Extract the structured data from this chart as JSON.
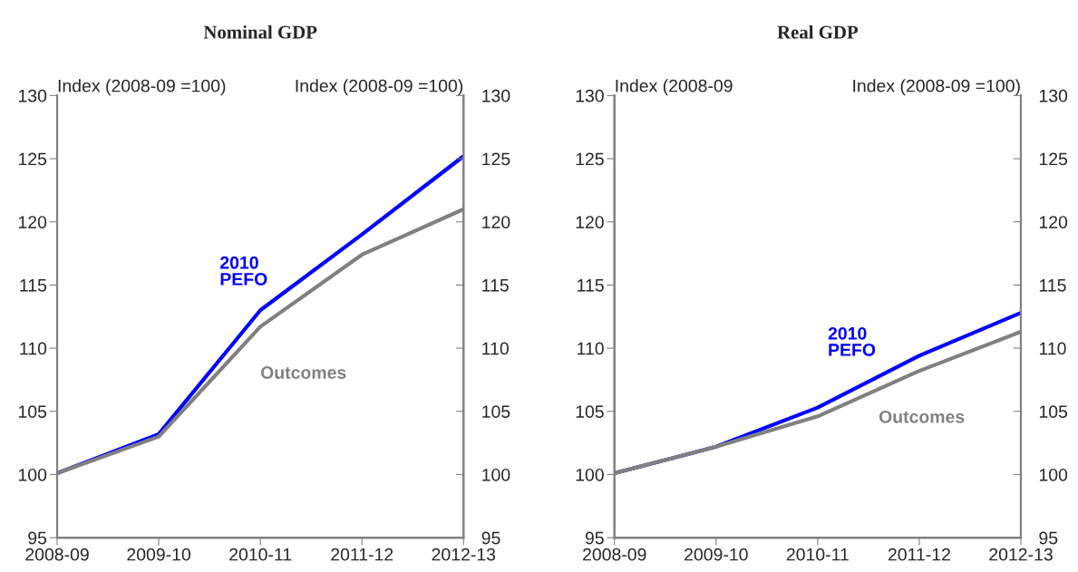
{
  "chart_data": [
    {
      "type": "line",
      "title": "Nominal GDP",
      "ylabel": "Index (2008-09 =100)",
      "y2label": "Index (2008-09 =100)",
      "categories": [
        "2008-09",
        "2009-10",
        "2010-11",
        "2011-12",
        "2012-13"
      ],
      "series": [
        {
          "name": "2010\nPEFO",
          "color": "#0000ff",
          "values": [
            100.1,
            103.2,
            113.0,
            119.0,
            125.2
          ]
        },
        {
          "name": "Outcomes",
          "color": "#808080",
          "values": [
            100.1,
            103.0,
            111.7,
            117.4,
            121.0
          ]
        }
      ],
      "ylim": [
        95,
        130
      ],
      "yticks": [
        95,
        100,
        105,
        110,
        115,
        120,
        125,
        130
      ],
      "y2lim": [
        95,
        130
      ],
      "y2ticks": [
        95,
        100,
        105,
        110,
        115,
        120,
        125,
        130
      ],
      "grid": false,
      "legend": false,
      "marker": "none",
      "line_style": "solid"
    },
    {
      "type": "line",
      "title": "Real GDP",
      "ylabel": "Index (2008-09",
      "y2label": "Index (2008-09 =100)",
      "categories": [
        "2008-09",
        "2009-10",
        "2010-11",
        "2011-12",
        "2012-13"
      ],
      "series": [
        {
          "name": "2010\nPEFO",
          "color": "#0000ff",
          "values": [
            100.1,
            102.2,
            105.3,
            109.4,
            112.8
          ]
        },
        {
          "name": "Outcomes",
          "color": "#808080",
          "values": [
            100.1,
            102.2,
            104.6,
            108.2,
            111.3
          ]
        }
      ],
      "ylim": [
        95,
        130
      ],
      "yticks": [
        95,
        100,
        105,
        110,
        115,
        120,
        125,
        130
      ],
      "y2lim": [
        95,
        130
      ],
      "y2ticks": [
        95,
        100,
        105,
        110,
        115,
        120,
        125,
        130
      ],
      "grid": false,
      "legend": false,
      "marker": "none",
      "line_style": "solid"
    }
  ]
}
